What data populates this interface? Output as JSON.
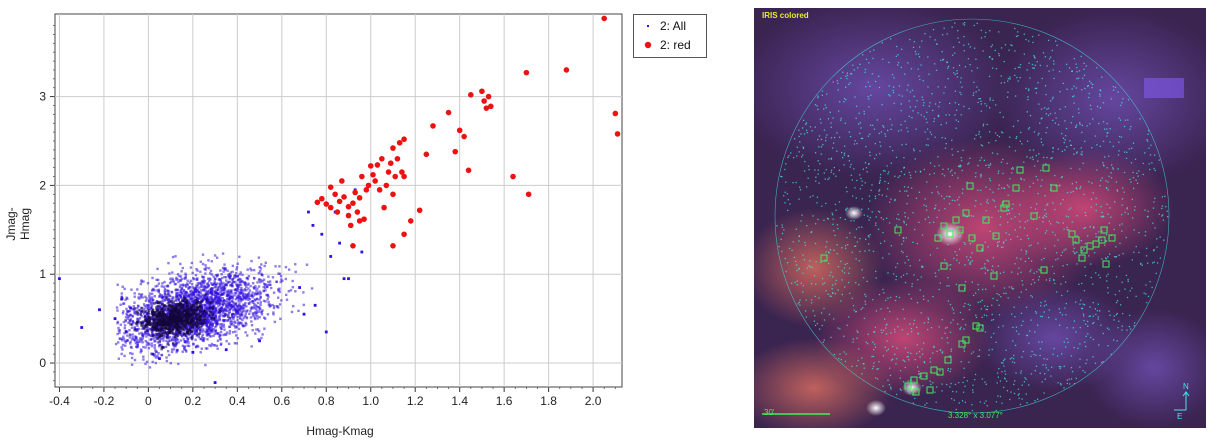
{
  "chart_data": {
    "type": "scatter",
    "xlabel": "Hmag-Kmag",
    "ylabel": "Jmag-Hmag",
    "xlim": [
      -0.42,
      2.13
    ],
    "ylim": [
      -0.27,
      3.93
    ],
    "xticks": [
      -0.4,
      -0.2,
      0,
      0.2,
      0.4,
      0.6,
      0.8,
      1.0,
      1.2,
      1.4,
      1.6,
      1.8,
      2.0
    ],
    "xtick_labels": [
      "-0.4",
      "-0.2",
      "0",
      "0.2",
      "0.4",
      "0.6",
      "0.8",
      "1.0",
      "1.2",
      "1.4",
      "1.6",
      "1.8",
      "2.0"
    ],
    "yticks": [
      0,
      1,
      2,
      3
    ],
    "ytick_labels": [
      "0",
      "1",
      "2",
      "3"
    ],
    "grid": true,
    "legend_position": "outside-top-right",
    "series": [
      {
        "name": "2: All",
        "color": "#3311dd",
        "marker": "small-square",
        "density_core": {
          "x": [
            0.1,
            0.25,
            0.45,
            0.6
          ],
          "y": [
            0.45,
            0.65,
            0.9,
            1.1
          ]
        },
        "points": [
          [
            -0.4,
            0.95
          ],
          [
            -0.3,
            0.4
          ],
          [
            -0.22,
            0.6
          ],
          [
            -0.15,
            0.5
          ],
          [
            -0.12,
            0.72
          ],
          [
            -0.1,
            0.35
          ],
          [
            -0.08,
            0.62
          ],
          [
            0.02,
            0.1
          ],
          [
            0.05,
            0.05
          ],
          [
            0.2,
            0.12
          ],
          [
            0.3,
            -0.22
          ],
          [
            0.35,
            0.15
          ],
          [
            0.5,
            0.25
          ],
          [
            0.68,
            0.85
          ],
          [
            0.7,
            0.55
          ],
          [
            0.72,
            1.7
          ],
          [
            0.74,
            1.55
          ],
          [
            0.75,
            0.65
          ],
          [
            0.76,
            1.8
          ],
          [
            0.78,
            1.45
          ],
          [
            0.8,
            0.35
          ],
          [
            0.82,
            1.2
          ],
          [
            0.84,
            1.7
          ],
          [
            0.86,
            1.35
          ],
          [
            0.88,
            0.95
          ],
          [
            0.9,
            0.95
          ],
          [
            0.93,
            1.95
          ],
          [
            0.96,
            1.25
          ]
        ]
      },
      {
        "name": "2: red",
        "color": "#ee1111",
        "marker": "circle",
        "points": [
          [
            0.76,
            1.81
          ],
          [
            0.78,
            1.85
          ],
          [
            0.8,
            1.79
          ],
          [
            0.82,
            1.75
          ],
          [
            0.82,
            1.98
          ],
          [
            0.84,
            1.9
          ],
          [
            0.85,
            1.7
          ],
          [
            0.86,
            1.82
          ],
          [
            0.87,
            2.05
          ],
          [
            0.88,
            1.87
          ],
          [
            0.9,
            1.76
          ],
          [
            0.9,
            1.66
          ],
          [
            0.91,
            1.55
          ],
          [
            0.92,
            1.8
          ],
          [
            0.93,
            1.92
          ],
          [
            0.94,
            1.7
          ],
          [
            0.95,
            1.86
          ],
          [
            0.96,
            2.1
          ],
          [
            0.97,
            1.62
          ],
          [
            0.98,
            1.95
          ],
          [
            0.99,
            2.0
          ],
          [
            1.0,
            2.22
          ],
          [
            1.01,
            2.12
          ],
          [
            1.02,
            2.05
          ],
          [
            1.03,
            2.23
          ],
          [
            1.04,
            1.95
          ],
          [
            1.05,
            2.3
          ],
          [
            1.06,
            1.75
          ],
          [
            1.07,
            2.0
          ],
          [
            1.08,
            2.15
          ],
          [
            1.09,
            2.25
          ],
          [
            1.1,
            1.9
          ],
          [
            1.1,
            2.42
          ],
          [
            1.11,
            2.1
          ],
          [
            1.12,
            2.3
          ],
          [
            1.13,
            2.48
          ],
          [
            1.14,
            2.15
          ],
          [
            1.15,
            2.52
          ],
          [
            1.15,
            2.1
          ],
          [
            0.92,
            1.32
          ],
          [
            0.95,
            1.6
          ],
          [
            1.1,
            1.32
          ],
          [
            1.15,
            1.45
          ],
          [
            1.18,
            1.6
          ],
          [
            1.22,
            1.72
          ],
          [
            1.25,
            2.35
          ],
          [
            1.28,
            2.67
          ],
          [
            1.35,
            2.82
          ],
          [
            1.38,
            2.38
          ],
          [
            1.4,
            2.62
          ],
          [
            1.42,
            2.55
          ],
          [
            1.44,
            2.17
          ],
          [
            1.45,
            3.02
          ],
          [
            1.5,
            3.06
          ],
          [
            1.51,
            2.95
          ],
          [
            1.52,
            2.87
          ],
          [
            1.53,
            3.0
          ],
          [
            1.54,
            2.89
          ],
          [
            1.64,
            2.1
          ],
          [
            1.7,
            3.27
          ],
          [
            1.71,
            1.9
          ],
          [
            1.88,
            3.3
          ],
          [
            2.05,
            3.88
          ],
          [
            2.1,
            2.81
          ],
          [
            2.11,
            2.58
          ]
        ]
      }
    ]
  },
  "sky_image": {
    "label": "IRIS colored",
    "fov_text": "3.328° x 3.077°",
    "scale_text": "30'",
    "north_label": "N",
    "east_label": "E",
    "overlay_color": "#46e6e6",
    "marker_color": "#3cf05a"
  }
}
